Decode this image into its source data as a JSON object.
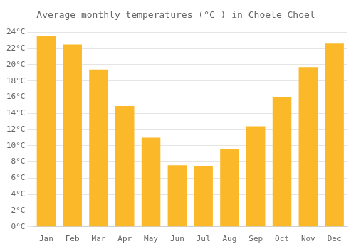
{
  "chart_data": {
    "type": "bar",
    "title": "Average monthly temperatures (°C ) in Choele Choel",
    "categories": [
      "Jan",
      "Feb",
      "Mar",
      "Apr",
      "May",
      "Jun",
      "Jul",
      "Aug",
      "Sep",
      "Oct",
      "Nov",
      "Dec"
    ],
    "values": [
      23.5,
      22.5,
      19.4,
      14.9,
      11.0,
      7.6,
      7.5,
      9.6,
      12.4,
      16.0,
      19.7,
      22.6
    ],
    "color": "#FBB829",
    "ylim": [
      0,
      24.5
    ],
    "yticks": [
      {
        "value": 0,
        "label": "0°C"
      },
      {
        "value": 2,
        "label": "2°C"
      },
      {
        "value": 4,
        "label": "4°C"
      },
      {
        "value": 6,
        "label": "6°C"
      },
      {
        "value": 8,
        "label": "8°C"
      },
      {
        "value": 10,
        "label": "10°C"
      },
      {
        "value": 12,
        "label": "12°C"
      },
      {
        "value": 14,
        "label": "14°C"
      },
      {
        "value": 16,
        "label": "16°C"
      },
      {
        "value": 18,
        "label": "18°C"
      },
      {
        "value": 20,
        "label": "20°C"
      },
      {
        "value": 22,
        "label": "22°C"
      },
      {
        "value": 24,
        "label": "24°C"
      }
    ],
    "grid": true
  }
}
